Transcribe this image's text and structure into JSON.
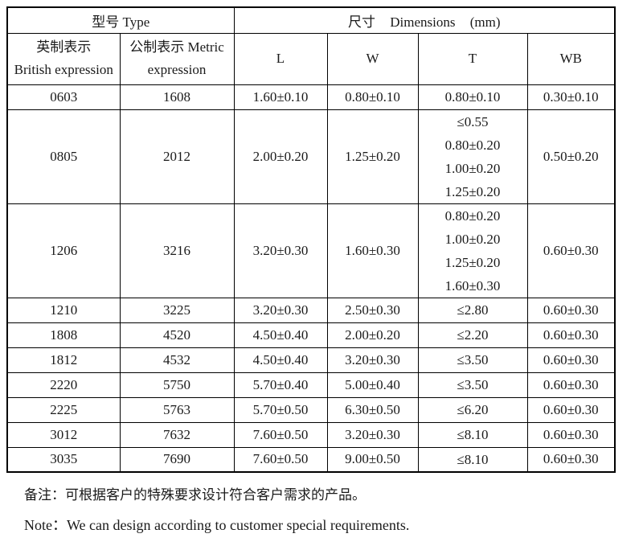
{
  "table": {
    "header": {
      "type_label": "型号 Type",
      "dimensions_cn": "尺寸",
      "dimensions_en": "Dimensions",
      "dimensions_unit": "(mm)"
    },
    "columns": [
      {
        "line1": "英制表示",
        "line2": "British expression"
      },
      {
        "line1": "公制表示 Metric",
        "line2": "expression"
      },
      {
        "label": "L"
      },
      {
        "label": "W"
      },
      {
        "label": "T"
      },
      {
        "label": "WB"
      }
    ],
    "rows": [
      {
        "british": "0603",
        "metric": "1608",
        "l": "1.60±0.10",
        "w": "0.80±0.10",
        "t": [
          "0.80±0.10"
        ],
        "wb": "0.30±0.10"
      },
      {
        "british": "0805",
        "metric": "2012",
        "l": "2.00±0.20",
        "w": "1.25±0.20",
        "t": [
          "≤0.55",
          "0.80±0.20",
          "1.00±0.20",
          "1.25±0.20"
        ],
        "wb": "0.50±0.20"
      },
      {
        "british": "1206",
        "metric": "3216",
        "l": "3.20±0.30",
        "w": "1.60±0.30",
        "t": [
          "0.80±0.20",
          "1.00±0.20",
          "1.25±0.20",
          "1.60±0.30"
        ],
        "wb": "0.60±0.30"
      },
      {
        "british": "1210",
        "metric": "3225",
        "l": "3.20±0.30",
        "w": "2.50±0.30",
        "t": [
          "≤2.80"
        ],
        "wb": "0.60±0.30"
      },
      {
        "british": "1808",
        "metric": "4520",
        "l": "4.50±0.40",
        "w": "2.00±0.20",
        "t": [
          "≤2.20"
        ],
        "wb": "0.60±0.30"
      },
      {
        "british": "1812",
        "metric": "4532",
        "l": "4.50±0.40",
        "w": "3.20±0.30",
        "t": [
          "≤3.50"
        ],
        "wb": "0.60±0.30"
      },
      {
        "british": "2220",
        "metric": "5750",
        "l": "5.70±0.40",
        "w": "5.00±0.40",
        "t": [
          "≤3.50"
        ],
        "wb": "0.60±0.30"
      },
      {
        "british": "2225",
        "metric": "5763",
        "l": "5.70±0.50",
        "w": "6.30±0.50",
        "t": [
          "≤6.20"
        ],
        "wb": "0.60±0.30"
      },
      {
        "british": "3012",
        "metric": "7632",
        "l": "7.60±0.50",
        "w": "3.20±0.30",
        "t": [
          "≤8.10"
        ],
        "wb": "0.60±0.30"
      },
      {
        "british": "3035",
        "metric": "7690",
        "l": "7.60±0.50",
        "w": "9.00±0.50",
        "t": [
          "≤8.10"
        ],
        "wb": "0.60±0.30"
      }
    ]
  },
  "notes": {
    "chinese": "备注：可根据客户的特殊要求设计符合客户需求的产品。",
    "english": "Note：We can design according to customer special requirements."
  }
}
